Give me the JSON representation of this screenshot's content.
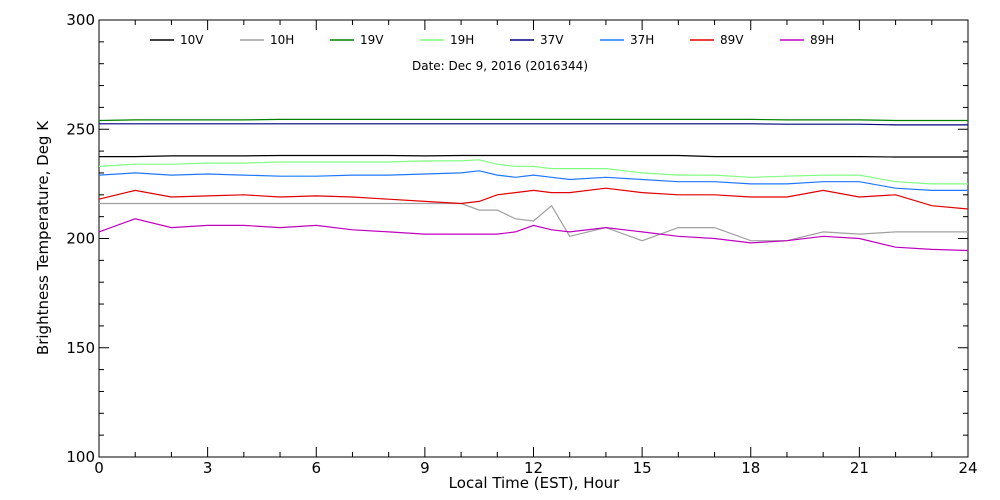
{
  "chart_data": {
    "type": "line",
    "title": "",
    "subtitle": "Date: Dec  9, 2016 (2016344)",
    "xlabel": "Local Time (EST), Hour",
    "ylabel": "Brightness Temperature, Deg K",
    "xlim": [
      0,
      24
    ],
    "ylim": [
      100,
      300
    ],
    "x_ticks": [
      0,
      3,
      6,
      9,
      12,
      15,
      18,
      21,
      24
    ],
    "y_ticks": [
      100,
      150,
      200,
      250,
      300
    ],
    "grid": false,
    "legend_position": "top",
    "x": [
      0,
      1,
      2,
      3,
      4,
      5,
      6,
      7,
      8,
      9,
      10,
      10.5,
      11,
      11.5,
      12,
      12.5,
      13,
      14,
      15,
      16,
      17,
      18,
      19,
      20,
      21,
      22,
      23,
      24
    ],
    "series": [
      {
        "name": "10V",
        "color": "#000000",
        "values": [
          237.5,
          237.5,
          237.8,
          237.8,
          237.8,
          238,
          238,
          238,
          238,
          237.8,
          238,
          238,
          238,
          238,
          238,
          238,
          238,
          238,
          238,
          238,
          237.5,
          237.5,
          237.5,
          237.5,
          237.5,
          237.3,
          237.3,
          237.3
        ]
      },
      {
        "name": "10H",
        "color": "#a0a0a0",
        "values": [
          216,
          216,
          216,
          216,
          216,
          216,
          216,
          216,
          216,
          216,
          216,
          213,
          213,
          209,
          208,
          215,
          201,
          205,
          199,
          205,
          205,
          199,
          199,
          203,
          202,
          203,
          203,
          203
        ]
      },
      {
        "name": "19V",
        "color": "#008000",
        "values": [
          254,
          254.3,
          254.3,
          254.3,
          254.3,
          254.5,
          254.5,
          254.5,
          254.5,
          254.5,
          254.5,
          254.5,
          254.5,
          254.5,
          254.5,
          254.5,
          254.5,
          254.5,
          254.5,
          254.5,
          254.5,
          254.5,
          254.3,
          254.3,
          254.3,
          254,
          254,
          254
        ]
      },
      {
        "name": "19H",
        "color": "#80ff80",
        "values": [
          233,
          234,
          234,
          234.5,
          234.5,
          235,
          235,
          235,
          235,
          235.5,
          235.5,
          236,
          234,
          233,
          233,
          232,
          232,
          232,
          230,
          229,
          229,
          228,
          228.5,
          229,
          229,
          226,
          225,
          225
        ]
      },
      {
        "name": "37V",
        "color": "#000080",
        "values": [
          252.5,
          252.5,
          252.5,
          252.5,
          252.5,
          252.5,
          252.5,
          252.5,
          252.5,
          252.5,
          252.5,
          252.5,
          252.5,
          252.5,
          252.5,
          252.5,
          252.5,
          252.5,
          252.5,
          252.5,
          252.5,
          252.5,
          252.3,
          252.3,
          252.3,
          252,
          252,
          252
        ]
      },
      {
        "name": "37H",
        "color": "#1e78ff",
        "values": [
          229,
          230,
          229,
          229.5,
          229,
          228.5,
          228.5,
          229,
          229,
          229.5,
          230,
          231,
          229,
          228,
          229,
          228,
          227,
          228,
          227,
          226,
          226,
          225,
          225,
          226,
          226,
          223,
          222,
          222
        ]
      },
      {
        "name": "89V",
        "color": "#e00000",
        "values": [
          218,
          222,
          219,
          219.5,
          220,
          219,
          219.5,
          219,
          218,
          217,
          216,
          217,
          220,
          221,
          222,
          221,
          221,
          223,
          221,
          220,
          220,
          219,
          219,
          222,
          219,
          220,
          215,
          213.5
        ]
      },
      {
        "name": "89H",
        "color": "#c000c0",
        "values": [
          203,
          209,
          205,
          206,
          206,
          205,
          206,
          204,
          203,
          202,
          202,
          202,
          202,
          203,
          206,
          204,
          203,
          205,
          203,
          201,
          200,
          198,
          199,
          201,
          200,
          196,
          195,
          194.5
        ]
      }
    ]
  }
}
